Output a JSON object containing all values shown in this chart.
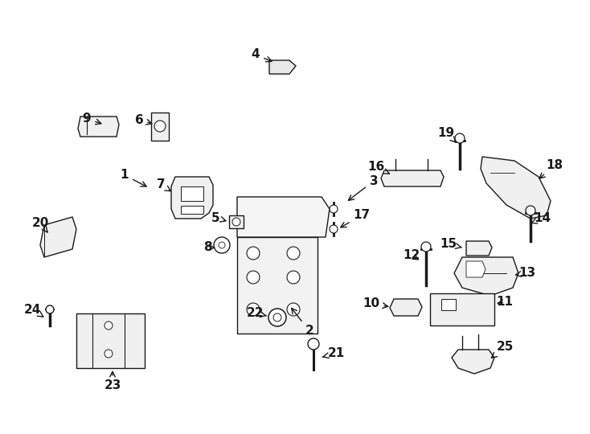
{
  "bg_color": "#ffffff",
  "fig_width": 7.34,
  "fig_height": 5.4,
  "dpi": 100,
  "lw": 1.0,
  "gray": "#1a1a1a"
}
